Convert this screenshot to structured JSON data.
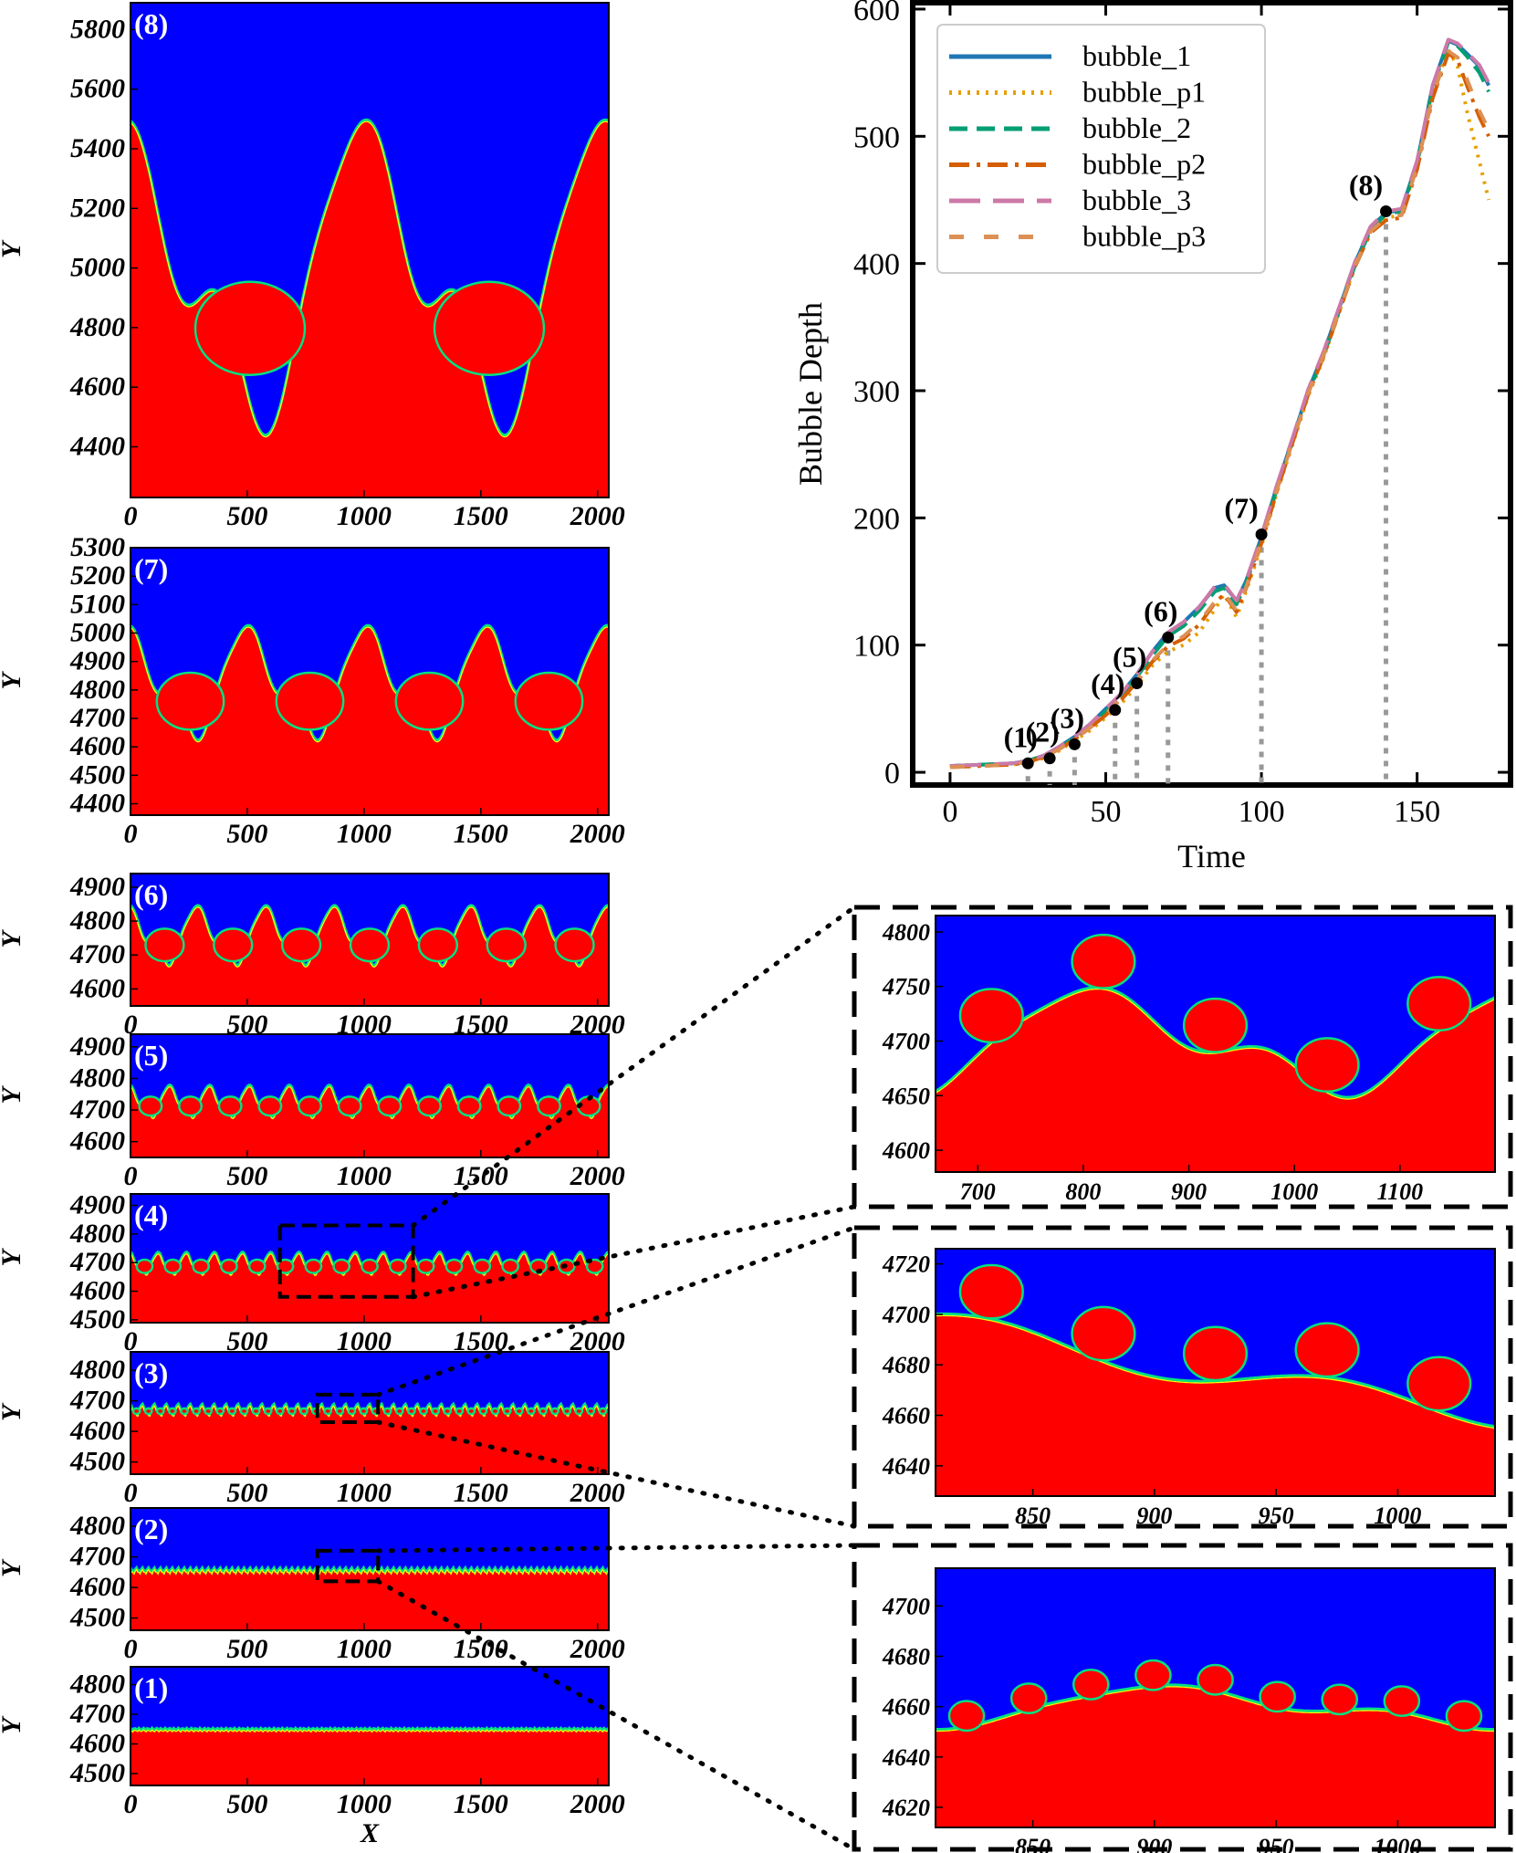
{
  "chart_data": [
    {
      "type": "line",
      "id": "bubble_depth",
      "xlabel": "Time",
      "ylabel": "Bubble Depth",
      "xlim": [
        -12,
        180
      ],
      "ylim": [
        -10,
        605
      ],
      "xticks": [
        "0",
        "50",
        "100",
        "150"
      ],
      "xtick_values": [
        0,
        50,
        100,
        150
      ],
      "yticks": [
        "0",
        "100",
        "200",
        "300",
        "400",
        "500",
        "600"
      ],
      "ytick_values": [
        0,
        100,
        200,
        300,
        400,
        500,
        600
      ],
      "legend": [
        "bubble_1",
        "bubble_p1",
        "bubble_2",
        "bubble_p2",
        "bubble_3",
        "bubble_p3"
      ],
      "series": [
        {
          "name": "bubble_1",
          "color": "#1f77b4",
          "style": "solid",
          "x": [
            0,
            10,
            20,
            25,
            30,
            35,
            40,
            45,
            50,
            55,
            60,
            65,
            70,
            75,
            80,
            85,
            88,
            92,
            95,
            100,
            105,
            110,
            115,
            120,
            125,
            130,
            135,
            140,
            145,
            150,
            155,
            160,
            163,
            166,
            170,
            173
          ],
          "y": [
            5,
            6,
            7,
            9,
            13,
            20,
            28,
            38,
            50,
            62,
            77,
            95,
            110,
            118,
            130,
            145,
            147,
            135,
            150,
            185,
            225,
            262,
            300,
            330,
            365,
            400,
            428,
            440,
            442,
            480,
            540,
            575,
            572,
            565,
            555,
            540
          ]
        },
        {
          "name": "bubble_p1",
          "color": "#e69f00",
          "style": "dotted",
          "x": [
            0,
            10,
            20,
            25,
            30,
            35,
            40,
            45,
            50,
            55,
            60,
            65,
            70,
            75,
            80,
            85,
            88,
            92,
            95,
            100,
            105,
            110,
            115,
            120,
            125,
            130,
            135,
            140,
            145,
            150,
            155,
            160,
            163,
            166,
            170,
            173
          ],
          "y": [
            4,
            5,
            6,
            8,
            11,
            17,
            25,
            33,
            43,
            54,
            68,
            84,
            95,
            100,
            110,
            128,
            140,
            122,
            142,
            178,
            220,
            258,
            296,
            326,
            362,
            398,
            425,
            436,
            438,
            478,
            535,
            568,
            555,
            520,
            480,
            450
          ]
        },
        {
          "name": "bubble_2",
          "color": "#009e73",
          "style": "dashed",
          "x": [
            0,
            10,
            20,
            25,
            30,
            35,
            40,
            45,
            50,
            55,
            60,
            65,
            70,
            75,
            80,
            85,
            88,
            92,
            95,
            100,
            105,
            110,
            115,
            120,
            125,
            130,
            135,
            140,
            145,
            150,
            155,
            160,
            163,
            166,
            170,
            173
          ],
          "y": [
            5,
            6,
            7,
            9,
            13,
            19,
            27,
            37,
            48,
            60,
            75,
            92,
            107,
            115,
            127,
            142,
            145,
            132,
            148,
            183,
            223,
            260,
            298,
            328,
            363,
            398,
            426,
            439,
            441,
            479,
            538,
            574,
            571,
            563,
            550,
            535
          ]
        },
        {
          "name": "bubble_p2",
          "color": "#d55e00",
          "style": "dashdot",
          "x": [
            0,
            10,
            20,
            25,
            30,
            35,
            40,
            45,
            50,
            55,
            60,
            65,
            70,
            75,
            80,
            85,
            88,
            92,
            95,
            100,
            105,
            110,
            115,
            120,
            125,
            130,
            135,
            140,
            145,
            150,
            155,
            160,
            163,
            166,
            170,
            173
          ],
          "y": [
            4,
            5,
            6,
            8,
            12,
            18,
            26,
            35,
            45,
            57,
            71,
            87,
            99,
            105,
            116,
            133,
            140,
            126,
            144,
            180,
            221,
            259,
            297,
            327,
            362,
            397,
            424,
            434,
            436,
            474,
            530,
            565,
            560,
            540,
            515,
            500
          ]
        },
        {
          "name": "bubble_3",
          "color": "#cc79a7",
          "style": "longdash",
          "x": [
            0,
            10,
            20,
            25,
            30,
            35,
            40,
            45,
            50,
            55,
            60,
            65,
            70,
            75,
            80,
            85,
            88,
            92,
            95,
            100,
            105,
            110,
            115,
            120,
            125,
            130,
            135,
            140,
            145,
            150,
            155,
            160,
            163,
            166,
            170,
            173
          ],
          "y": [
            5,
            6,
            7,
            9,
            13,
            20,
            28,
            38,
            50,
            62,
            77,
            95,
            110,
            118,
            130,
            146,
            148,
            135,
            150,
            186,
            226,
            263,
            301,
            331,
            366,
            401,
            429,
            441,
            443,
            481,
            540,
            576,
            573,
            566,
            556,
            542
          ]
        },
        {
          "name": "bubble_p3",
          "color": "#dd9055",
          "style": "loosedash",
          "x": [
            0,
            10,
            20,
            25,
            30,
            35,
            40,
            45,
            50,
            55,
            60,
            65,
            70,
            75,
            80,
            85,
            88,
            92,
            95,
            100,
            105,
            110,
            115,
            120,
            125,
            130,
            135,
            140,
            145,
            150,
            155,
            160,
            163,
            166,
            170,
            173
          ],
          "y": [
            4,
            5,
            6,
            8,
            12,
            18,
            26,
            35,
            46,
            58,
            72,
            88,
            100,
            107,
            118,
            134,
            141,
            127,
            145,
            181,
            222,
            260,
            298,
            328,
            363,
            398,
            425,
            436,
            438,
            476,
            532,
            567,
            562,
            545,
            520,
            505
          ]
        }
      ],
      "markers": [
        {
          "label": "(1)",
          "x": 25,
          "y": 7
        },
        {
          "label": "(2)",
          "x": 32,
          "y": 11
        },
        {
          "label": "(3)",
          "x": 40,
          "y": 22
        },
        {
          "label": "(4)",
          "x": 53,
          "y": 49
        },
        {
          "label": "(5)",
          "x": 60,
          "y": 70
        },
        {
          "label": "(6)",
          "x": 70,
          "y": 106
        },
        {
          "label": "(7)",
          "x": 100,
          "y": 187
        },
        {
          "label": "(8)",
          "x": 140,
          "y": 441
        }
      ]
    },
    {
      "type": "heatmap",
      "id": "panel_8",
      "label": "(8)",
      "ylabel": "Y",
      "xticks": [
        "0",
        "500",
        "1000",
        "1500",
        "2000"
      ],
      "xtick_values": [
        0,
        500,
        1000,
        1500,
        2000
      ],
      "yticks": [
        "4400",
        "4600",
        "4800",
        "5000",
        "5200",
        "5400",
        "5600",
        "5800"
      ],
      "ytick_values": [
        4400,
        4600,
        4800,
        5000,
        5200,
        5400,
        5600,
        5800
      ],
      "xlim": [
        0,
        2048
      ],
      "ylim": [
        4230,
        5890
      ],
      "interface_mean": 4980,
      "amplitude": 420,
      "modes": 2
    },
    {
      "type": "heatmap",
      "id": "panel_7",
      "label": "(7)",
      "ylabel": "Y",
      "xticks": [
        "0",
        "500",
        "1000",
        "1500",
        "2000"
      ],
      "xtick_values": [
        0,
        500,
        1000,
        1500,
        2000
      ],
      "yticks": [
        "4400",
        "4500",
        "4600",
        "4700",
        "4800",
        "4900",
        "5000",
        "5100",
        "5200",
        "5300"
      ],
      "ytick_values": [
        4400,
        4500,
        4600,
        4700,
        4800,
        4900,
        5000,
        5100,
        5200,
        5300
      ],
      "xlim": [
        0,
        2048
      ],
      "ylim": [
        4360,
        5300
      ],
      "interface_mean": 4830,
      "amplitude": 160,
      "modes": 4
    },
    {
      "type": "heatmap",
      "id": "panel_6",
      "label": "(6)",
      "ylabel": "Y",
      "xticks": [
        "0",
        "500",
        "1000",
        "1500",
        "2000"
      ],
      "xtick_values": [
        0,
        500,
        1000,
        1500,
        2000
      ],
      "yticks": [
        "4600",
        "4700",
        "4800",
        "4900"
      ],
      "ytick_values": [
        4600,
        4700,
        4800,
        4900
      ],
      "xlim": [
        0,
        2048
      ],
      "ylim": [
        4550,
        4940
      ],
      "interface_mean": 4760,
      "amplitude": 70,
      "modes": 7
    },
    {
      "type": "heatmap",
      "id": "panel_5",
      "label": "(5)",
      "ylabel": "Y",
      "xticks": [
        "0",
        "500",
        "1000",
        "1500",
        "2000"
      ],
      "xtick_values": [
        0,
        500,
        1000,
        1500,
        2000
      ],
      "yticks": [
        "4600",
        "4700",
        "4800",
        "4900"
      ],
      "ytick_values": [
        4600,
        4700,
        4800,
        4900
      ],
      "xlim": [
        0,
        2048
      ],
      "ylim": [
        4550,
        4940
      ],
      "interface_mean": 4730,
      "amplitude": 40,
      "modes": 12
    },
    {
      "type": "heatmap",
      "id": "panel_4",
      "label": "(4)",
      "ylabel": "Y",
      "xticks": [
        "0",
        "500",
        "1000",
        "1500",
        "2000"
      ],
      "xtick_values": [
        0,
        500,
        1000,
        1500,
        2000
      ],
      "yticks": [
        "4500",
        "4600",
        "4700",
        "4800",
        "4900"
      ],
      "ytick_values": [
        4500,
        4600,
        4700,
        4800,
        4900
      ],
      "xlim": [
        0,
        2048
      ],
      "ylim": [
        4490,
        4940
      ],
      "interface_mean": 4700,
      "amplitude": 30,
      "modes": 17,
      "zoom_box": {
        "x": [
          640,
          1210
        ],
        "y": [
          4580,
          4830
        ]
      }
    },
    {
      "type": "heatmap",
      "id": "panel_3",
      "label": "(3)",
      "ylabel": "Y",
      "xticks": [
        "0",
        "500",
        "1000",
        "1500",
        "2000"
      ],
      "xtick_values": [
        0,
        500,
        1000,
        1500,
        2000
      ],
      "yticks": [
        "4500",
        "4600",
        "4700",
        "4800"
      ],
      "ytick_values": [
        4500,
        4600,
        4700,
        4800
      ],
      "xlim": [
        0,
        2048
      ],
      "ylim": [
        4460,
        4860
      ],
      "interface_mean": 4672,
      "amplitude": 14,
      "modes": 40,
      "zoom_box": {
        "x": [
          800,
          1060
        ],
        "y": [
          4630,
          4720
        ]
      }
    },
    {
      "type": "heatmap",
      "id": "panel_2",
      "label": "(2)",
      "ylabel": "Y",
      "xticks": [
        "0",
        "500",
        "1000",
        "1500",
        "2000"
      ],
      "xtick_values": [
        0,
        500,
        1000,
        1500,
        2000
      ],
      "yticks": [
        "4500",
        "4600",
        "4700",
        "4800"
      ],
      "ytick_values": [
        4500,
        4600,
        4700,
        4800
      ],
      "xlim": [
        0,
        2048
      ],
      "ylim": [
        4460,
        4860
      ],
      "interface_mean": 4657,
      "amplitude": 6,
      "modes": 80,
      "zoom_box": {
        "x": [
          800,
          1060
        ],
        "y": [
          4620,
          4720
        ]
      }
    },
    {
      "type": "heatmap",
      "id": "panel_1",
      "label": "(1)",
      "ylabel": "Y",
      "xlabel": "X",
      "xticks": [
        "0",
        "500",
        "1000",
        "1500",
        "2000"
      ],
      "xtick_values": [
        0,
        500,
        1000,
        1500,
        2000
      ],
      "yticks": [
        "4500",
        "4600",
        "4700",
        "4800"
      ],
      "ytick_values": [
        4500,
        4600,
        4700,
        4800
      ],
      "xlim": [
        0,
        2048
      ],
      "ylim": [
        4460,
        4860
      ],
      "interface_mean": 4650,
      "amplitude": 3,
      "modes": 110
    },
    {
      "type": "heatmap",
      "id": "zoom_4",
      "source": "(4)",
      "xticks": [
        "700",
        "800",
        "900",
        "1000",
        "1100"
      ],
      "xtick_values": [
        700,
        800,
        900,
        1000,
        1100
      ],
      "yticks": [
        "4600",
        "4650",
        "4700",
        "4750",
        "4800"
      ],
      "ytick_values": [
        4600,
        4650,
        4700,
        4750,
        4800
      ],
      "xlim": [
        660,
        1190
      ],
      "ylim": [
        4580,
        4815
      ],
      "interface_mean": 4700,
      "amplitude": 40,
      "modes": 5
    },
    {
      "type": "heatmap",
      "id": "zoom_3",
      "source": "(3)",
      "xticks": [
        "850",
        "900",
        "950",
        "1000"
      ],
      "xtick_values": [
        850,
        900,
        950,
        1000
      ],
      "yticks": [
        "4640",
        "4660",
        "4680",
        "4700",
        "4720"
      ],
      "ytick_values": [
        4640,
        4660,
        4680,
        4700,
        4720
      ],
      "xlim": [
        810,
        1040
      ],
      "ylim": [
        4628,
        4726
      ],
      "interface_mean": 4678,
      "amplitude": 18,
      "modes": 5
    },
    {
      "type": "heatmap",
      "id": "zoom_2",
      "source": "(2)",
      "xticks": [
        "850",
        "900",
        "950",
        "1000"
      ],
      "xtick_values": [
        850,
        900,
        950,
        1000
      ],
      "yticks": [
        "4620",
        "4640",
        "4660",
        "4680",
        "4700"
      ],
      "ytick_values": [
        4620,
        4640,
        4660,
        4680,
        4700
      ],
      "xlim": [
        810,
        1040
      ],
      "ylim": [
        4612,
        4715
      ],
      "interface_mean": 4660,
      "amplitude": 7,
      "modes": 9
    }
  ]
}
